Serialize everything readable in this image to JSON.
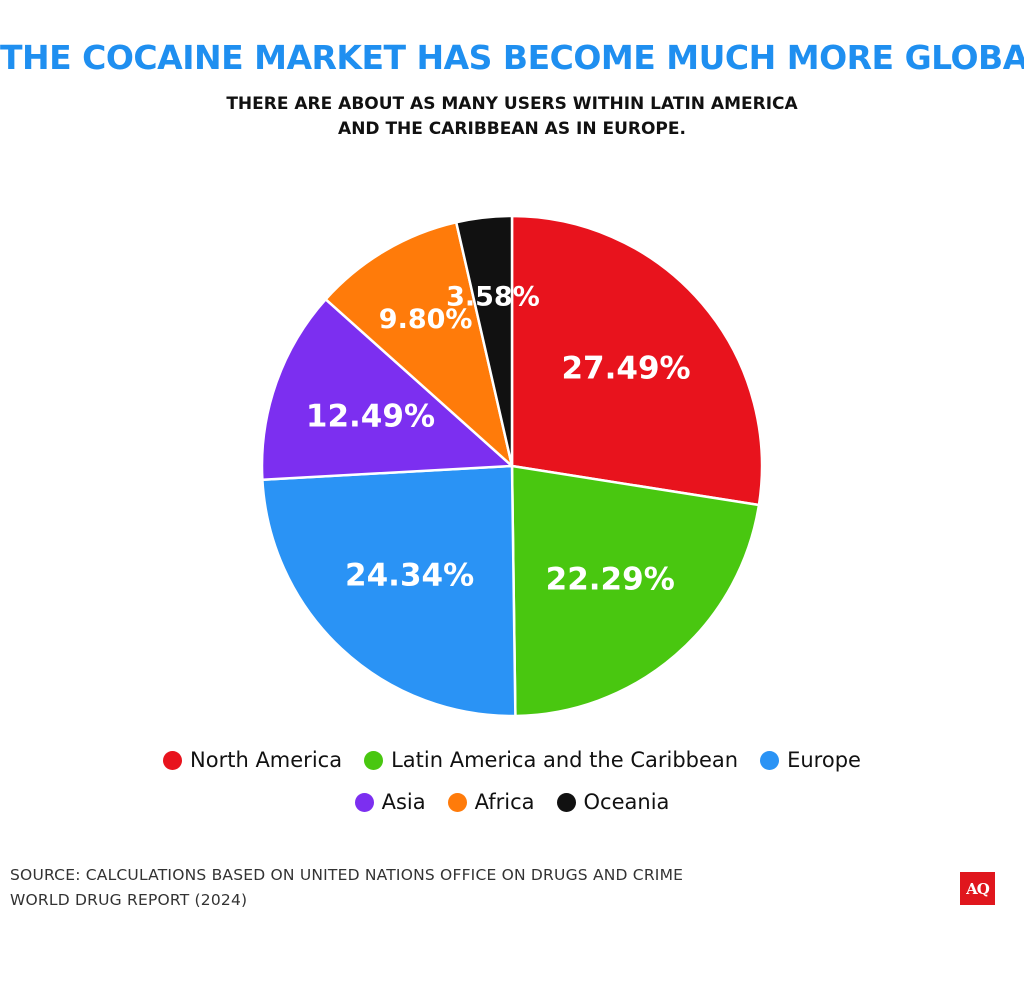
{
  "colors": {
    "title": "#1f8ff0",
    "north_america": "#e8131d",
    "latin_america": "#49c710",
    "europe": "#2a93f5",
    "asia": "#7c2ff0",
    "africa": "#ff7b0a",
    "oceania": "#111111",
    "logo_bg": "#e0161d"
  },
  "chart_data": {
    "type": "pie",
    "title": "THE COCAINE MARKET HAS BECOME MUCH MORE GLOBAL",
    "subtitle_lines": [
      "THERE ARE ABOUT AS MANY USERS WITHIN LATIN AMERICA",
      "AND THE CARIBBEAN AS IN EUROPE."
    ],
    "slices": [
      {
        "name": "North America",
        "value": 27.49,
        "label": "27.49%",
        "color": "#e8131d"
      },
      {
        "name": "Latin America and the Caribbean",
        "value": 22.29,
        "label": "22.29%",
        "color": "#49c710"
      },
      {
        "name": "Europe",
        "value": 24.34,
        "label": "24.34%",
        "color": "#2a93f5"
      },
      {
        "name": "Asia",
        "value": 12.49,
        "label": "12.49%",
        "color": "#7c2ff0"
      },
      {
        "name": "Africa",
        "value": 9.8,
        "label": "9.80%",
        "color": "#ff7b0a"
      },
      {
        "name": "Oceania",
        "value": 3.58,
        "label": "3.58%",
        "color": "#111111"
      }
    ],
    "legend_placement": "bottom"
  },
  "source": {
    "lines": [
      "SOURCE: CALCULATIONS BASED ON UNITED NATIONS OFFICE ON DRUGS AND CRIME",
      "WORLD DRUG REPORT (2024)"
    ]
  },
  "logo": {
    "text": "AQ"
  }
}
